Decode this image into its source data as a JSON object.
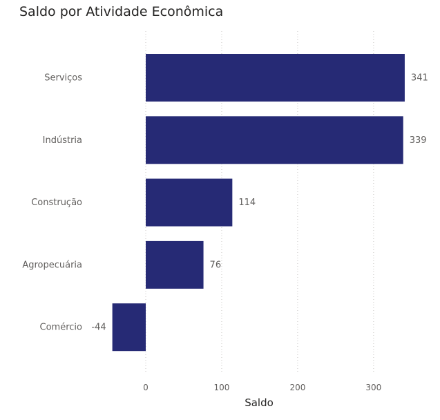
{
  "chart_data": {
    "type": "bar",
    "orientation": "horizontal",
    "title": "Saldo por Atividade Econômica",
    "xlabel": "Saldo",
    "ylabel": "",
    "categories": [
      "Serviços",
      "Indústria",
      "Construção",
      "Agropecuária",
      "Comércio"
    ],
    "values": [
      341,
      339,
      114,
      76,
      -44
    ],
    "xticks": [
      0,
      100,
      200,
      300
    ],
    "xlim": [
      -50,
      345
    ],
    "bar_color": "#262a75",
    "grid": true,
    "data_labels": true
  }
}
